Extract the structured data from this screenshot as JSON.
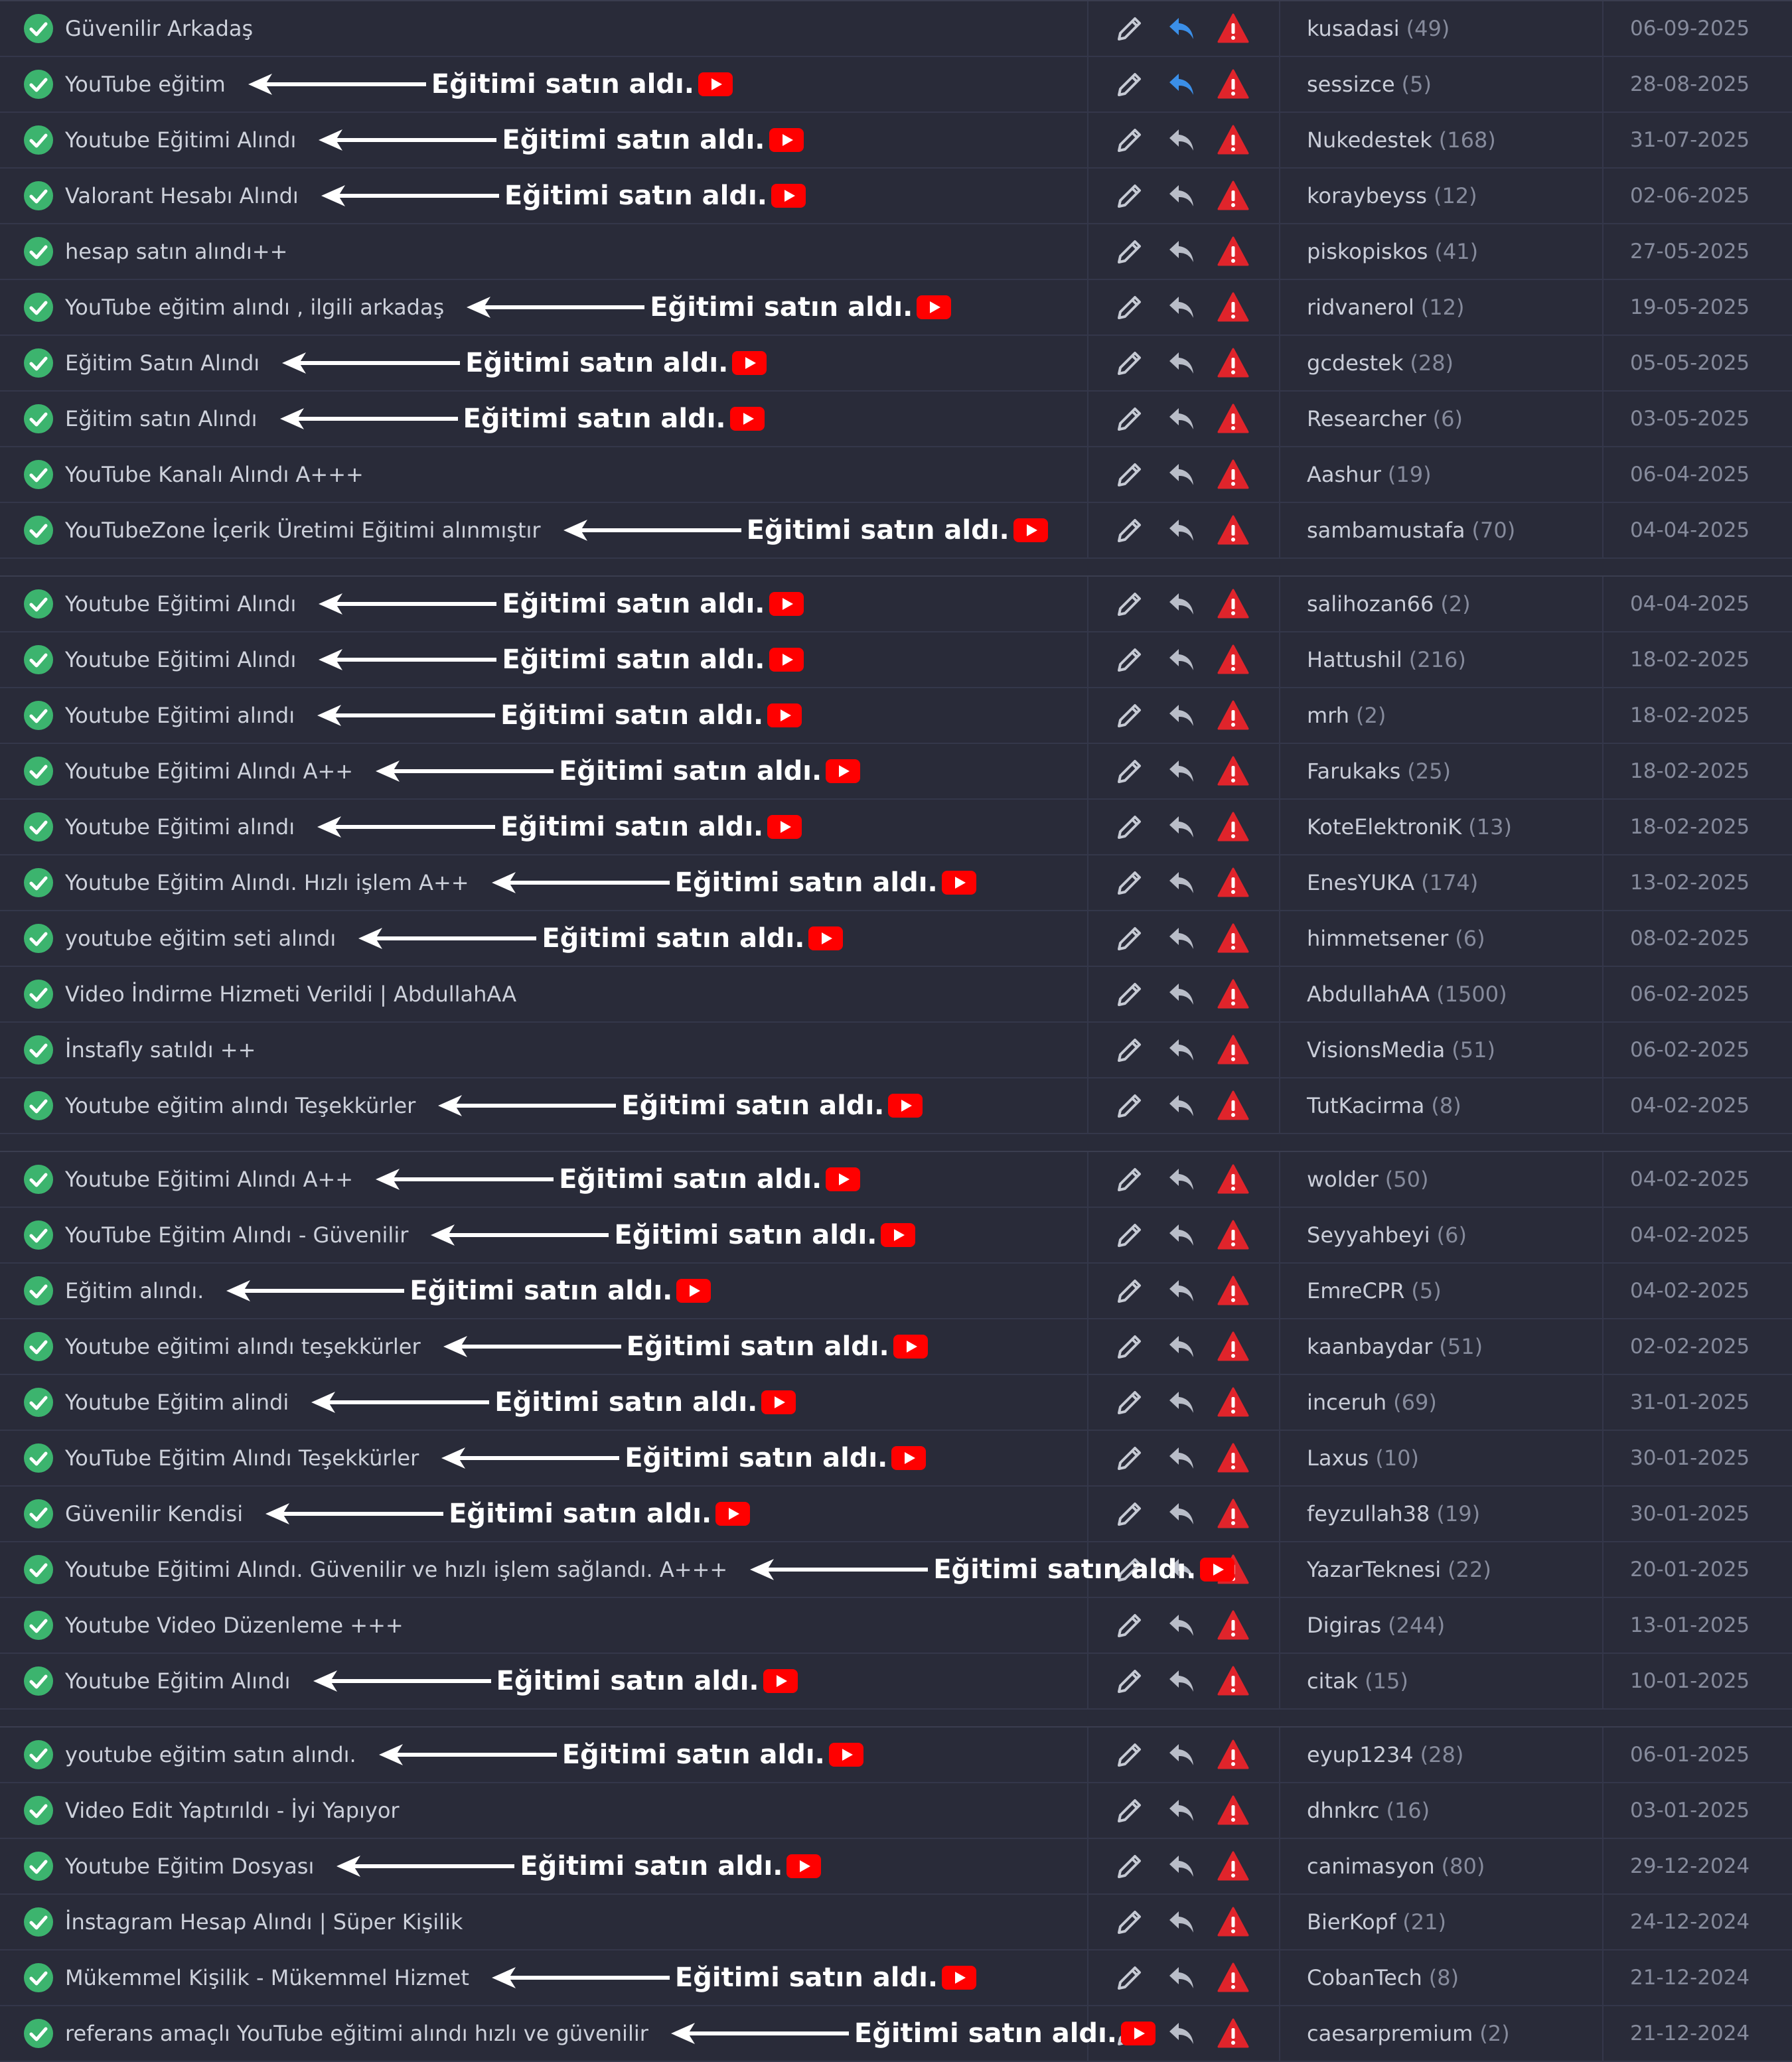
{
  "groups": [
    {
      "rows": [
        {
          "title": "Güvenilir Arkadaş",
          "user": "kusadasi",
          "count": "(49)",
          "date": "06-09-2025",
          "reply_color": "#3b8fe8"
        },
        {
          "title": "YouTube eğitim",
          "note": "Eğitimi satın aldı.",
          "user": "sessizce",
          "count": "(5)",
          "date": "28-08-2025",
          "reply_color": "#3b8fe8"
        },
        {
          "title": "Youtube Eğitimi Alındı",
          "note": "Eğitimi satın aldı.",
          "user": "Nukedestek",
          "count": "(168)",
          "date": "31-07-2025"
        },
        {
          "title": "Valorant Hesabı Alındı",
          "note": "Eğitimi satın aldı.",
          "user": "koraybeyss",
          "count": "(12)",
          "date": "02-06-2025"
        },
        {
          "title": "hesap satın alındı++",
          "user": "piskopiskos",
          "count": "(41)",
          "date": "27-05-2025"
        },
        {
          "title": "YouTube eğitim alındı , ilgili arkadaş",
          "note": "Eğitimi satın aldı.",
          "user": "ridvanerol",
          "count": "(12)",
          "date": "19-05-2025"
        },
        {
          "title": "Eğitim Satın Alındı",
          "note": "Eğitimi satın aldı.",
          "user": "gcdestek",
          "count": "(28)",
          "date": "05-05-2025"
        },
        {
          "title": "Eğitim satın Alındı",
          "note": "Eğitimi satın aldı.",
          "user": "Researcher",
          "count": "(6)",
          "date": "03-05-2025"
        },
        {
          "title": "YouTube Kanalı Alındı A+++",
          "user": "Aashur",
          "count": "(19)",
          "date": "06-04-2025"
        },
        {
          "title": "YouTubeZone İçerik Üretimi Eğitimi alınmıştır",
          "note": "Eğitimi satın aldı.",
          "user": "sambamustafa",
          "count": "(70)",
          "date": "04-04-2025"
        }
      ]
    },
    {
      "rows": [
        {
          "title": "Youtube Eğitimi Alındı",
          "note": "Eğitimi satın aldı.",
          "user": "salihozan66",
          "count": "(2)",
          "date": "04-04-2025"
        },
        {
          "title": "Youtube Eğitimi Alındı",
          "note": "Eğitimi satın aldı.",
          "user": "Hattushil",
          "count": "(216)",
          "date": "18-02-2025"
        },
        {
          "title": "Youtube Eğitimi alındı",
          "note": "Eğitimi satın aldı.",
          "user": "mrh",
          "count": "(2)",
          "date": "18-02-2025"
        },
        {
          "title": "Youtube Eğitimi Alındı A++",
          "note": "Eğitimi satın aldı.",
          "user": "Farukaks",
          "count": "(25)",
          "date": "18-02-2025"
        },
        {
          "title": "Youtube Eğitimi alındı",
          "note": "Eğitimi satın aldı.",
          "user": "KoteElektroniK",
          "count": "(13)",
          "date": "18-02-2025"
        },
        {
          "title": "Youtube Eğitim Alındı. Hızlı işlem A++",
          "note": "Eğitimi satın aldı.",
          "user": "EnesYUKA",
          "count": "(174)",
          "date": "13-02-2025"
        },
        {
          "title": "youtube eğitim seti alındı",
          "note": "Eğitimi satın aldı.",
          "user": "himmetsener",
          "count": "(6)",
          "date": "08-02-2025"
        },
        {
          "title": "Video İndirme Hizmeti Verildi | AbdullahAA",
          "user": "AbdullahAA",
          "count": "(1500)",
          "date": "06-02-2025"
        },
        {
          "title": "İnstafly satıldı ++",
          "user": "VisionsMedia",
          "count": "(51)",
          "date": "06-02-2025"
        },
        {
          "title": "Youtube eğitim alındı Teşekkürler",
          "note": "Eğitimi satın aldı.",
          "user": "TutKacirma",
          "count": "(8)",
          "date": "04-02-2025"
        }
      ]
    },
    {
      "rows": [
        {
          "title": "Youtube Eğitimi Alındı A++",
          "note": "Eğitimi satın aldı.",
          "user": "wolder",
          "count": "(50)",
          "date": "04-02-2025"
        },
        {
          "title": "YouTube Eğitim Alındı - Güvenilir",
          "note": "Eğitimi satın aldı.",
          "user": "Seyyahbeyi",
          "count": "(6)",
          "date": "04-02-2025"
        },
        {
          "title": "Eğitim alındı.",
          "note": "Eğitimi satın aldı.",
          "user": "EmreCPR",
          "count": "(5)",
          "date": "04-02-2025"
        },
        {
          "title": "Youtube eğitimi alındı teşekkürler",
          "note": "Eğitimi satın aldı.",
          "user": "kaanbaydar",
          "count": "(51)",
          "date": "02-02-2025"
        },
        {
          "title": "Youtube Eğitim alindi",
          "note": "Eğitimi satın aldı.",
          "user": "inceruh",
          "count": "(69)",
          "date": "31-01-2025"
        },
        {
          "title": "YouTube Eğitim Alındı Teşekkürler",
          "note": "Eğitimi satın aldı.",
          "user": "Laxus",
          "count": "(10)",
          "date": "30-01-2025"
        },
        {
          "title": "Güvenilir Kendisi",
          "note": "Eğitimi satın aldı.",
          "user": "feyzullah38",
          "count": "(19)",
          "date": "30-01-2025"
        },
        {
          "title": "Youtube Eğitimi Alındı. Güvenilir ve hızlı işlem sağlandı. A+++",
          "note": "Eğitimi satın aldı.",
          "user": "YazarTeknesi",
          "count": "(22)",
          "date": "20-01-2025"
        },
        {
          "title": "Youtube Video Düzenleme +++",
          "user": "Digiras",
          "count": "(244)",
          "date": "13-01-2025"
        },
        {
          "title": "Youtube Eğitim Alındı",
          "note": "Eğitimi satın aldı.",
          "user": "citak",
          "count": "(15)",
          "date": "10-01-2025"
        }
      ]
    },
    {
      "rows": [
        {
          "title": "youtube eğitim satın alındı.",
          "note": "Eğitimi satın aldı.",
          "user": "eyup1234",
          "count": "(28)",
          "date": "06-01-2025"
        },
        {
          "title": "Video Edit Yaptırıldı - İyi Yapıyor",
          "user": "dhnkrc",
          "count": "(16)",
          "date": "03-01-2025"
        },
        {
          "title": "Youtube Eğitim Dosyası",
          "note": "Eğitimi satın aldı.",
          "user": "canimasyon",
          "count": "(80)",
          "date": "29-12-2024"
        },
        {
          "title": "İnstagram Hesap Alındı | Süper Kişilik",
          "user": "BierKopf",
          "count": "(21)",
          "date": "24-12-2024"
        },
        {
          "title": "Mükemmel Kişilik - Mükemmel Hizmet",
          "note": "Eğitimi satın aldı.",
          "user": "CobanTech",
          "count": "(8)",
          "date": "21-12-2024"
        },
        {
          "title": "referans amaçlı YouTube eğitimi alındı hızlı ve güvenilir",
          "note": "Eğitimi satın aldı.",
          "user": "caesarpremium",
          "count": "(2)",
          "date": "21-12-2024"
        }
      ]
    }
  ]
}
